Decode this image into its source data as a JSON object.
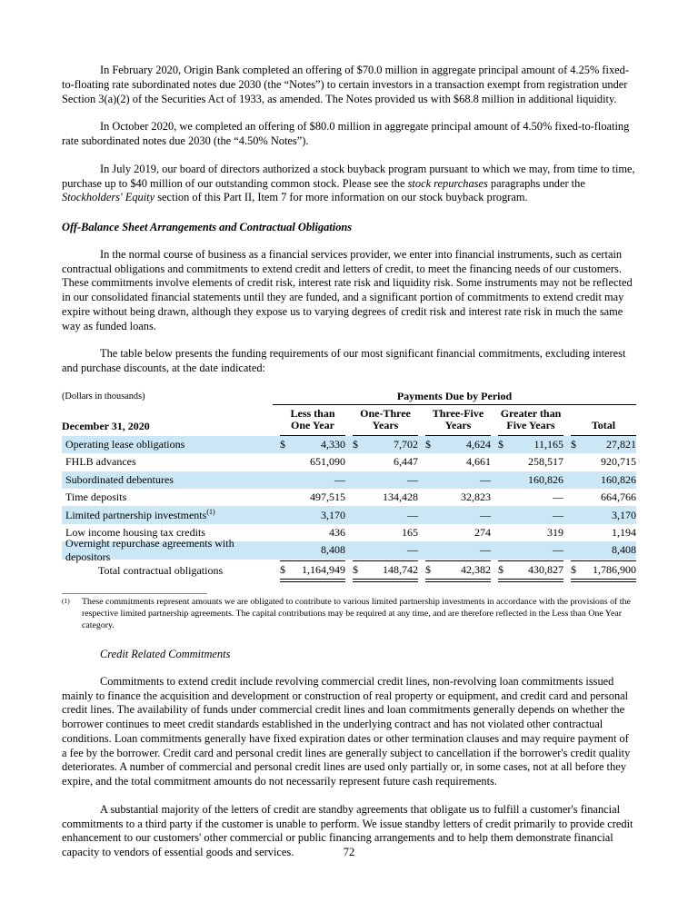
{
  "paragraphs": {
    "p1": "In February 2020, Origin Bank completed an offering of $70.0 million in aggregate principal amount of 4.25% fixed-to-floating rate subordinated notes due 2030 (the “Notes”) to certain investors in a transaction exempt from registration under Section 3(a)(2) of the Securities Act of 1933, as amended. The Notes provided us with $68.8 million in additional liquidity.",
    "p2": "In October 2020, we completed an offering of $80.0 million in aggregate principal amount of 4.50% fixed-to-floating rate subordinated notes due 2030 (the “4.50% Notes”).",
    "p3_part1": "In July 2019, our board of directors authorized a stock buyback program pursuant to which we may, from time to time, purchase up to $40 million of our outstanding common stock. Please see the ",
    "p3_italic1": "stock repurchases",
    "p3_part2": " paragraphs under the ",
    "p3_italic2": "Stockholders' Equity",
    "p3_part3": " section of this Part II, Item 7 for more information on our stock buyback program.",
    "heading1": "Off-Balance Sheet Arrangements and Contractual Obligations",
    "p4": "In the normal course of business as a financial services provider, we enter into financial instruments, such as certain contractual obligations and commitments to extend credit and letters of credit, to meet the financing needs of our customers. These commitments involve elements of credit risk, interest rate risk and liquidity risk. Some instruments may not be reflected in our consolidated financial statements until they are funded, and a significant portion of commitments to extend credit may expire without being drawn, although they expose us to varying degrees of credit risk and interest rate risk in much the same way as funded loans.",
    "p5": "The table below presents the funding requirements of our most significant financial commitments, excluding interest and purchase discounts, at the date indicated:",
    "footnote_marker": "(1)",
    "footnote": "These commitments represent amounts we are obligated to contribute to various limited partnership investments in accordance with the provisions of the respective limited partnership agreements. The capital contributions may be required at any time, and are therefore reflected in the Less than One Year category.",
    "heading2": "Credit Related Commitments",
    "p6": "Commitments to extend credit include revolving commercial credit lines, non-revolving loan commitments issued mainly to finance the acquisition and development or construction of real property or equipment, and credit card and personal credit lines. The availability of funds under commercial credit lines and loan commitments generally depends on whether the borrower continues to meet credit standards established in the underlying contract and has not violated other contractual conditions. Loan commitments generally have fixed expiration dates or other termination clauses and may require payment of a fee by the borrower. Credit card and personal credit lines are generally subject to cancellation if the borrower's credit quality deteriorates. A number of commercial and personal credit lines are used only partially or, in some cases, not at all before they expire, and the total commitment amounts do not necessarily represent future cash requirements.",
    "p7": "A substantial majority of the letters of credit are standby agreements that obligate us to fulfill a customer's financial commitments to a third party if the customer is unable to perform. We issue standby letters of credit primarily to provide credit enhancement to our customers' other commercial or public financing arrangements and to help them demonstrate financial capacity to vendors of essential goods and services."
  },
  "table": {
    "dollars_note": "(Dollars in thousands)",
    "payments_header": "Payments Due by Period",
    "date_header": "December 31, 2020",
    "columns": [
      "Less than One Year",
      "One-Three Years",
      "Three-Five Years",
      "Greater than Five Years",
      "Total"
    ],
    "highlight_color": "#cbe7f5",
    "rows": [
      {
        "label": "Operating lease obligations",
        "sup": "",
        "dollar": true,
        "shaded": true,
        "values": [
          "4,330",
          "7,702",
          "4,624",
          "11,165",
          "27,821"
        ]
      },
      {
        "label": "FHLB advances",
        "sup": "",
        "dollar": false,
        "shaded": false,
        "values": [
          "651,090",
          "6,447",
          "4,661",
          "258,517",
          "920,715"
        ]
      },
      {
        "label": "Subordinated debentures",
        "sup": "",
        "dollar": false,
        "shaded": true,
        "values": [
          "—",
          "—",
          "—",
          "160,826",
          "160,826"
        ]
      },
      {
        "label": "Time deposits",
        "sup": "",
        "dollar": false,
        "shaded": false,
        "values": [
          "497,515",
          "134,428",
          "32,823",
          "—",
          "664,766"
        ]
      },
      {
        "label": "Limited partnership investments",
        "sup": "(1)",
        "dollar": false,
        "shaded": true,
        "values": [
          "3,170",
          "—",
          "—",
          "—",
          "3,170"
        ]
      },
      {
        "label": "Low income housing tax credits",
        "sup": "",
        "dollar": false,
        "shaded": false,
        "values": [
          "436",
          "165",
          "274",
          "319",
          "1,194"
        ]
      },
      {
        "label": "Overnight repurchase agreements with depositors",
        "sup": "",
        "dollar": false,
        "shaded": true,
        "values": [
          "8,408",
          "—",
          "—",
          "—",
          "8,408"
        ]
      }
    ],
    "total_row": {
      "label": "Total contractual obligations",
      "dollar": true,
      "values": [
        "1,164,949",
        "148,742",
        "42,382",
        "430,827",
        "1,786,900"
      ]
    }
  },
  "page": {
    "number": "72"
  }
}
